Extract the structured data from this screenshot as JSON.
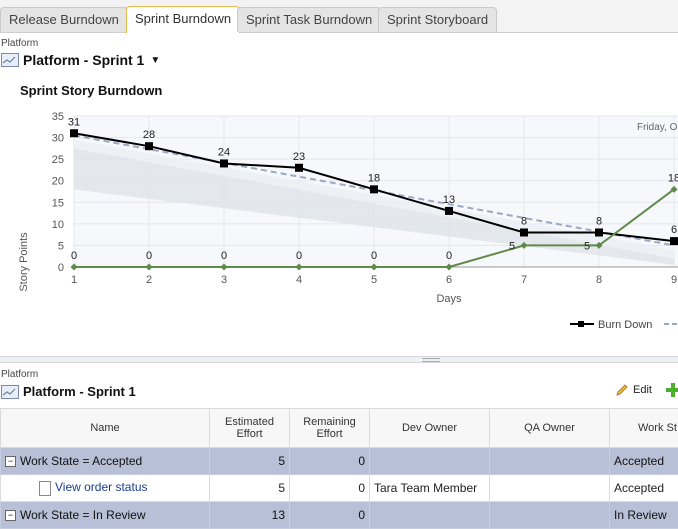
{
  "tabs": [
    {
      "label": "Release Burndown",
      "active": false
    },
    {
      "label": "Sprint Burndown",
      "active": true
    },
    {
      "label": "Sprint Task Burndown",
      "active": false
    },
    {
      "label": "Sprint Storyboard",
      "active": false
    }
  ],
  "top_panel": {
    "context_label": "Platform",
    "selector_title": "Platform - Sprint 1"
  },
  "chart_data": {
    "type": "line",
    "title": "Sprint Story Burndown",
    "xlabel": "Days",
    "ylabel": "Story Points",
    "ylim": [
      0,
      35
    ],
    "y_ticks": [
      "0",
      "5",
      "10",
      "15",
      "20",
      "25",
      "30",
      "35"
    ],
    "x": [
      1,
      2,
      3,
      4,
      5,
      6,
      7,
      8,
      9
    ],
    "date_label": "Friday, O",
    "series": [
      {
        "name": "Burn Down",
        "color": "#000000",
        "values": [
          31,
          28,
          24,
          23,
          18,
          13,
          8,
          8,
          6
        ],
        "labels": [
          "31",
          "28",
          "24",
          "23",
          "18",
          "13",
          "8",
          "8",
          "6"
        ]
      },
      {
        "name": "",
        "color": "#5f8a4a",
        "values": [
          0,
          0,
          0,
          0,
          0,
          0,
          5,
          5,
          18
        ],
        "labels": [
          "0",
          "0",
          "0",
          "0",
          "0",
          "0",
          "5",
          "5",
          "18"
        ]
      }
    ],
    "ideal_line": {
      "from": 30.5,
      "to": 5,
      "color": "#9aa8c6"
    },
    "legend": {
      "placement": "bottom-right",
      "items": [
        "Burn Down"
      ]
    }
  },
  "bottom_panel": {
    "context_label": "Platform",
    "title": "Platform - Sprint 1",
    "edit_label": "Edit"
  },
  "grid": {
    "headers": {
      "name": "Name",
      "estimated": "Estimated Effort",
      "remaining": "Remaining Effort",
      "dev_owner": "Dev Owner",
      "qa_owner": "QA Owner",
      "work_state": "Work St"
    },
    "rows": [
      {
        "type": "group",
        "name": "Work State = Accepted",
        "estimated": "5",
        "remaining": "0",
        "dev_owner": "",
        "qa_owner": "",
        "work_state": "Accepted"
      },
      {
        "type": "item",
        "name": "View order status",
        "estimated": "5",
        "remaining": "0",
        "dev_owner": "Tara Team Member",
        "qa_owner": "",
        "work_state": "Accepted"
      },
      {
        "type": "group",
        "name": "Work State = In Review",
        "estimated": "13",
        "remaining": "0",
        "dev_owner": "",
        "qa_owner": "",
        "work_state": "In Review"
      }
    ]
  }
}
